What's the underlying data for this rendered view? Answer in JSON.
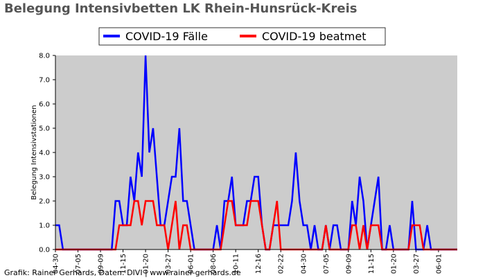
{
  "chart_data": {
    "type": "line",
    "title": "Belegung Intensivbetten LK Rhein-Hunsrück-Kreis",
    "y_label": "Belegung Intensivstationen",
    "footer": "Grafik: Rainer Gerhards, Daten: DIVI | www.rainer-gerhards.de",
    "categories": [
      "04-30",
      null,
      null,
      null,
      null,
      null,
      "07-05",
      null,
      null,
      null,
      null,
      null,
      "09-09",
      null,
      null,
      null,
      null,
      null,
      "11-15",
      null,
      null,
      null,
      null,
      null,
      "01-20",
      null,
      null,
      null,
      null,
      null,
      "03-27",
      null,
      null,
      null,
      null,
      null,
      "06-01",
      null,
      null,
      null,
      null,
      null,
      "08-06",
      null,
      null,
      null,
      null,
      null,
      "10-11",
      null,
      null,
      null,
      null,
      null,
      "12-16",
      null,
      null,
      null,
      null,
      null,
      "02-22",
      null,
      null,
      null,
      null,
      null,
      "04-30",
      null,
      null,
      null,
      null,
      null,
      "07-05",
      null,
      null,
      null,
      null,
      null,
      "09-09",
      null,
      null,
      null,
      null,
      null,
      "11-15",
      null,
      null,
      null,
      null,
      null,
      "01-20",
      null,
      null,
      null,
      null,
      null,
      "03-27",
      null,
      null,
      null,
      null,
      null,
      "06-01",
      null,
      null,
      null,
      null,
      null
    ],
    "series": [
      {
        "name": "COVID-19 Fälle",
        "color": "#0000ff",
        "values": [
          1,
          1,
          0,
          0,
          0,
          0,
          0,
          0,
          0,
          0,
          0,
          0,
          0,
          0,
          0,
          0,
          2,
          2,
          1,
          1,
          3,
          2,
          4,
          3,
          8,
          4,
          5,
          3,
          1,
          1,
          2,
          3,
          3,
          5,
          2,
          2,
          1,
          0,
          0,
          0,
          0,
          0,
          0,
          1,
          0,
          2,
          2,
          3,
          1,
          1,
          1,
          2,
          2,
          3,
          3,
          1,
          0,
          0,
          1,
          1,
          1,
          1,
          1,
          2,
          4,
          2,
          1,
          1,
          0,
          1,
          0,
          0,
          1,
          0,
          1,
          1,
          0,
          0,
          0,
          2,
          1,
          3,
          2,
          0,
          1,
          2,
          3,
          0,
          0,
          1,
          0,
          0,
          0,
          0,
          0,
          2,
          0,
          0,
          0,
          1,
          0,
          0,
          0,
          0,
          0,
          0,
          0,
          0
        ]
      },
      {
        "name": "COVID-19 beatmet",
        "color": "#ff0000",
        "values": [
          0,
          0,
          0,
          0,
          0,
          0,
          0,
          0,
          0,
          0,
          0,
          0,
          0,
          0,
          0,
          0,
          0,
          1,
          1,
          1,
          1,
          2,
          2,
          1,
          2,
          2,
          2,
          1,
          1,
          1,
          0,
          1,
          2,
          0,
          1,
          1,
          0,
          0,
          0,
          0,
          0,
          0,
          0,
          0,
          0,
          1,
          2,
          2,
          1,
          1,
          1,
          1,
          2,
          2,
          2,
          1,
          0,
          0,
          1,
          2,
          0,
          0,
          0,
          0,
          0,
          0,
          0,
          0,
          0,
          0,
          0,
          0,
          1,
          0,
          0,
          0,
          0,
          0,
          0,
          1,
          1,
          0,
          1,
          0,
          1,
          1,
          1,
          0,
          0,
          0,
          0,
          0,
          0,
          0,
          0,
          1,
          1,
          1,
          0,
          0,
          0,
          0,
          0,
          0,
          0,
          0,
          0,
          0
        ]
      }
    ],
    "ylim": [
      0,
      8
    ],
    "yticks": [
      {
        "value": 0,
        "label": "0.0"
      },
      {
        "value": 1,
        "label": "1.0"
      },
      {
        "value": 2,
        "label": "2.0"
      },
      {
        "value": 3,
        "label": "3.0"
      },
      {
        "value": 4,
        "label": "4.0"
      },
      {
        "value": 5,
        "label": "5.0"
      },
      {
        "value": 6,
        "label": "6.0"
      },
      {
        "value": 7,
        "label": "7.0"
      },
      {
        "value": 8,
        "label": "8.0"
      }
    ],
    "plot_background": "#cccccc"
  }
}
